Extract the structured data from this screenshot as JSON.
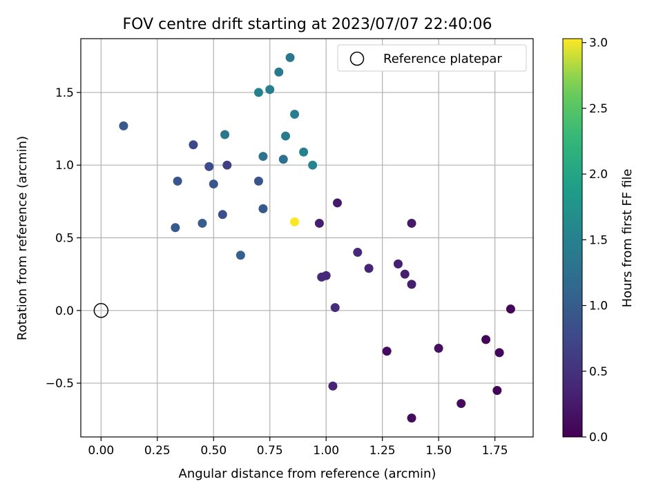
{
  "chart_data": {
    "type": "scatter",
    "title": "FOV centre drift starting at 2023/07/07 22:40:06",
    "xlabel": "Angular distance from reference (arcmin)",
    "ylabel": "Rotation from reference (arcmin)",
    "xlim": [
      -0.09,
      1.92
    ],
    "ylim": [
      -0.87,
      1.87
    ],
    "x_ticks": [
      0.0,
      0.25,
      0.5,
      0.75,
      1.0,
      1.25,
      1.5,
      1.75
    ],
    "x_tick_labels": [
      "0.00",
      "0.25",
      "0.50",
      "0.75",
      "1.00",
      "1.25",
      "1.50",
      "1.75"
    ],
    "y_ticks": [
      -0.5,
      0.0,
      0.5,
      1.0,
      1.5
    ],
    "y_tick_labels": [
      "−0.5",
      "0.0",
      "0.5",
      "1.0",
      "1.5"
    ],
    "grid": true,
    "legend": {
      "position": "top-right",
      "entries": [
        "Reference platepar"
      ]
    },
    "colorbar": {
      "label": "Hours from first FF file",
      "colormap": "viridis",
      "range": [
        0.0,
        3.03
      ],
      "ticks": [
        0.0,
        0.5,
        1.0,
        1.5,
        2.0,
        2.5,
        3.0
      ],
      "tick_labels": [
        "0.0",
        "0.5",
        "1.0",
        "1.5",
        "2.0",
        "2.5",
        "3.0"
      ]
    },
    "reference_point": {
      "x": 0.0,
      "y": 0.0
    },
    "points": [
      {
        "x": 0.1,
        "y": 1.27,
        "c": 0.95
      },
      {
        "x": 0.41,
        "y": 1.14,
        "c": 0.75
      },
      {
        "x": 0.48,
        "y": 0.99,
        "c": 0.8
      },
      {
        "x": 0.34,
        "y": 0.89,
        "c": 0.9
      },
      {
        "x": 0.5,
        "y": 0.87,
        "c": 0.9
      },
      {
        "x": 0.56,
        "y": 1.0,
        "c": 0.65
      },
      {
        "x": 0.33,
        "y": 0.57,
        "c": 0.95
      },
      {
        "x": 0.45,
        "y": 0.6,
        "c": 1.0
      },
      {
        "x": 0.54,
        "y": 0.66,
        "c": 0.8
      },
      {
        "x": 0.62,
        "y": 0.38,
        "c": 1.05
      },
      {
        "x": 0.7,
        "y": 0.89,
        "c": 0.9
      },
      {
        "x": 0.72,
        "y": 0.7,
        "c": 0.95
      },
      {
        "x": 0.55,
        "y": 1.21,
        "c": 1.35
      },
      {
        "x": 0.72,
        "y": 1.06,
        "c": 1.3
      },
      {
        "x": 0.81,
        "y": 1.04,
        "c": 1.25
      },
      {
        "x": 0.82,
        "y": 1.2,
        "c": 1.4
      },
      {
        "x": 0.9,
        "y": 1.09,
        "c": 1.5
      },
      {
        "x": 0.94,
        "y": 1.0,
        "c": 1.55
      },
      {
        "x": 0.7,
        "y": 1.5,
        "c": 1.5
      },
      {
        "x": 0.75,
        "y": 1.52,
        "c": 1.45
      },
      {
        "x": 0.79,
        "y": 1.64,
        "c": 1.4
      },
      {
        "x": 0.84,
        "y": 1.74,
        "c": 1.35
      },
      {
        "x": 0.86,
        "y": 1.35,
        "c": 1.45
      },
      {
        "x": 0.86,
        "y": 0.61,
        "c": 3.03
      },
      {
        "x": 0.97,
        "y": 0.6,
        "c": 0.3
      },
      {
        "x": 1.05,
        "y": 0.74,
        "c": 0.25
      },
      {
        "x": 0.98,
        "y": 0.23,
        "c": 0.4
      },
      {
        "x": 1.0,
        "y": 0.24,
        "c": 0.4
      },
      {
        "x": 1.04,
        "y": 0.02,
        "c": 0.45
      },
      {
        "x": 1.14,
        "y": 0.4,
        "c": 0.4
      },
      {
        "x": 1.19,
        "y": 0.29,
        "c": 0.35
      },
      {
        "x": 1.32,
        "y": 0.32,
        "c": 0.3
      },
      {
        "x": 1.35,
        "y": 0.25,
        "c": 0.3
      },
      {
        "x": 1.38,
        "y": 0.18,
        "c": 0.3
      },
      {
        "x": 1.38,
        "y": 0.6,
        "c": 0.25
      },
      {
        "x": 1.03,
        "y": -0.52,
        "c": 0.35
      },
      {
        "x": 1.27,
        "y": -0.28,
        "c": 0.1
      },
      {
        "x": 1.5,
        "y": -0.26,
        "c": 0.15
      },
      {
        "x": 1.38,
        "y": -0.74,
        "c": 0.1
      },
      {
        "x": 1.6,
        "y": -0.64,
        "c": 0.1
      },
      {
        "x": 1.71,
        "y": -0.2,
        "c": 0.05
      },
      {
        "x": 1.77,
        "y": -0.29,
        "c": 0.05
      },
      {
        "x": 1.76,
        "y": -0.55,
        "c": 0.05
      },
      {
        "x": 1.82,
        "y": 0.01,
        "c": 0.05
      }
    ]
  }
}
